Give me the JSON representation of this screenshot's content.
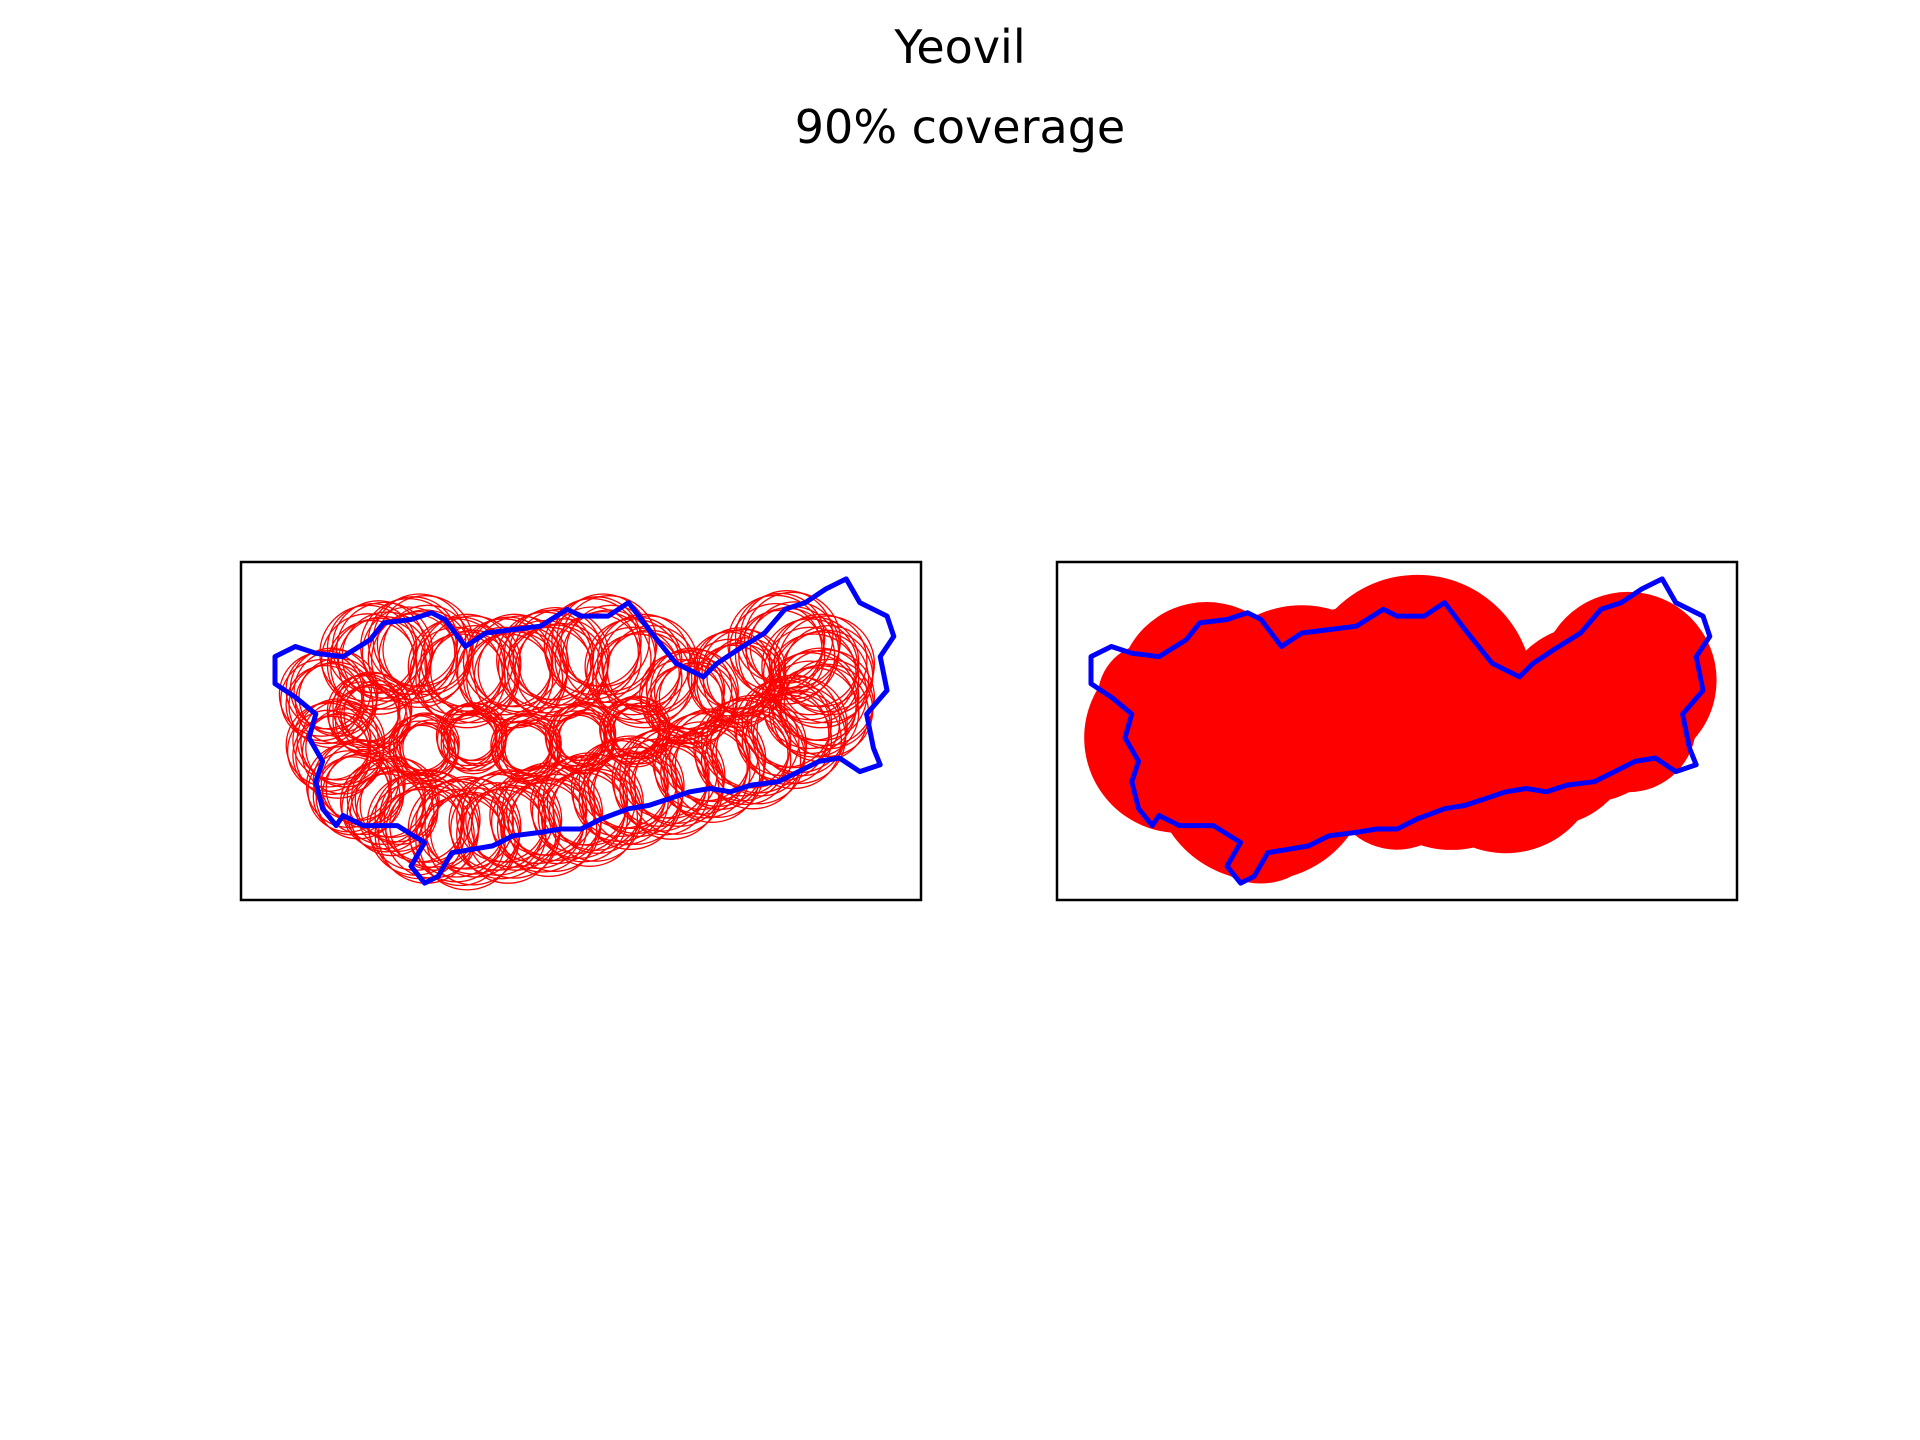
{
  "title": "Yeovil",
  "subtitle": "90% coverage",
  "colors": {
    "boundary": "#0000ff",
    "coverage": "#ff0000",
    "frame": "#000000",
    "background": "#ffffff"
  },
  "chart_data": [
    {
      "type": "map",
      "style": "circle-outlines",
      "axes_ticks": false,
      "x_range": [
        0,
        1
      ],
      "y_range": [
        0,
        1
      ],
      "boundary": [
        [
          0.05,
          0.72
        ],
        [
          0.08,
          0.75
        ],
        [
          0.11,
          0.73
        ],
        [
          0.15,
          0.72
        ],
        [
          0.19,
          0.77
        ],
        [
          0.21,
          0.82
        ],
        [
          0.25,
          0.83
        ],
        [
          0.28,
          0.85
        ],
        [
          0.3,
          0.83
        ],
        [
          0.33,
          0.75
        ],
        [
          0.36,
          0.79
        ],
        [
          0.4,
          0.8
        ],
        [
          0.44,
          0.81
        ],
        [
          0.48,
          0.86
        ],
        [
          0.5,
          0.84
        ],
        [
          0.54,
          0.84
        ],
        [
          0.57,
          0.88
        ],
        [
          0.6,
          0.8
        ],
        [
          0.62,
          0.75
        ],
        [
          0.64,
          0.7
        ],
        [
          0.68,
          0.66
        ],
        [
          0.7,
          0.7
        ],
        [
          0.73,
          0.74
        ],
        [
          0.77,
          0.79
        ],
        [
          0.8,
          0.86
        ],
        [
          0.83,
          0.88
        ],
        [
          0.86,
          0.92
        ],
        [
          0.89,
          0.95
        ],
        [
          0.91,
          0.88
        ],
        [
          0.95,
          0.84
        ],
        [
          0.96,
          0.78
        ],
        [
          0.94,
          0.72
        ],
        [
          0.95,
          0.62
        ],
        [
          0.92,
          0.55
        ],
        [
          0.93,
          0.45
        ],
        [
          0.94,
          0.4
        ],
        [
          0.91,
          0.38
        ],
        [
          0.88,
          0.42
        ],
        [
          0.85,
          0.41
        ],
        [
          0.82,
          0.38
        ],
        [
          0.79,
          0.35
        ],
        [
          0.75,
          0.34
        ],
        [
          0.72,
          0.32
        ],
        [
          0.69,
          0.33
        ],
        [
          0.66,
          0.32
        ],
        [
          0.63,
          0.3
        ],
        [
          0.6,
          0.28
        ],
        [
          0.57,
          0.27
        ],
        [
          0.53,
          0.24
        ],
        [
          0.5,
          0.21
        ],
        [
          0.47,
          0.21
        ],
        [
          0.44,
          0.2
        ],
        [
          0.4,
          0.19
        ],
        [
          0.37,
          0.16
        ],
        [
          0.34,
          0.15
        ],
        [
          0.31,
          0.14
        ],
        [
          0.29,
          0.07
        ],
        [
          0.27,
          0.05
        ],
        [
          0.25,
          0.1
        ],
        [
          0.27,
          0.17
        ],
        [
          0.23,
          0.22
        ],
        [
          0.18,
          0.22
        ],
        [
          0.15,
          0.25
        ],
        [
          0.14,
          0.22
        ],
        [
          0.12,
          0.27
        ],
        [
          0.11,
          0.35
        ],
        [
          0.12,
          0.41
        ],
        [
          0.1,
          0.48
        ],
        [
          0.11,
          0.55
        ],
        [
          0.08,
          0.6
        ],
        [
          0.05,
          0.64
        ],
        [
          0.05,
          0.72
        ]
      ],
      "coverage_circles": [
        [
          0.13,
          0.6,
          0.07
        ],
        [
          0.14,
          0.45,
          0.07
        ],
        [
          0.17,
          0.33,
          0.07
        ],
        [
          0.22,
          0.28,
          0.07
        ],
        [
          0.27,
          0.22,
          0.08
        ],
        [
          0.33,
          0.2,
          0.08
        ],
        [
          0.39,
          0.22,
          0.08
        ],
        [
          0.45,
          0.24,
          0.08
        ],
        [
          0.51,
          0.27,
          0.08
        ],
        [
          0.57,
          0.32,
          0.08
        ],
        [
          0.63,
          0.35,
          0.08
        ],
        [
          0.69,
          0.4,
          0.08
        ],
        [
          0.75,
          0.44,
          0.08
        ],
        [
          0.81,
          0.5,
          0.08
        ],
        [
          0.85,
          0.58,
          0.08
        ],
        [
          0.85,
          0.68,
          0.08
        ],
        [
          0.8,
          0.75,
          0.08
        ],
        [
          0.73,
          0.66,
          0.07
        ],
        [
          0.66,
          0.6,
          0.07
        ],
        [
          0.59,
          0.68,
          0.08
        ],
        [
          0.53,
          0.74,
          0.08
        ],
        [
          0.46,
          0.7,
          0.08
        ],
        [
          0.4,
          0.68,
          0.08
        ],
        [
          0.33,
          0.68,
          0.08
        ],
        [
          0.26,
          0.74,
          0.08
        ],
        [
          0.2,
          0.72,
          0.08
        ],
        [
          0.19,
          0.55,
          0.06
        ],
        [
          0.27,
          0.45,
          0.05
        ],
        [
          0.34,
          0.48,
          0.05
        ],
        [
          0.42,
          0.45,
          0.05
        ],
        [
          0.5,
          0.48,
          0.05
        ],
        [
          0.58,
          0.5,
          0.05
        ]
      ]
    },
    {
      "type": "map",
      "style": "filled-circles",
      "axes_ticks": false,
      "x_range": [
        0,
        1
      ],
      "y_range": [
        0,
        1
      ],
      "boundary": [
        [
          0.05,
          0.72
        ],
        [
          0.08,
          0.75
        ],
        [
          0.11,
          0.73
        ],
        [
          0.15,
          0.72
        ],
        [
          0.19,
          0.77
        ],
        [
          0.21,
          0.82
        ],
        [
          0.25,
          0.83
        ],
        [
          0.28,
          0.85
        ],
        [
          0.3,
          0.83
        ],
        [
          0.33,
          0.75
        ],
        [
          0.36,
          0.79
        ],
        [
          0.4,
          0.8
        ],
        [
          0.44,
          0.81
        ],
        [
          0.48,
          0.86
        ],
        [
          0.5,
          0.84
        ],
        [
          0.54,
          0.84
        ],
        [
          0.57,
          0.88
        ],
        [
          0.6,
          0.8
        ],
        [
          0.62,
          0.75
        ],
        [
          0.64,
          0.7
        ],
        [
          0.68,
          0.66
        ],
        [
          0.7,
          0.7
        ],
        [
          0.73,
          0.74
        ],
        [
          0.77,
          0.79
        ],
        [
          0.8,
          0.86
        ],
        [
          0.83,
          0.88
        ],
        [
          0.86,
          0.92
        ],
        [
          0.89,
          0.95
        ],
        [
          0.91,
          0.88
        ],
        [
          0.95,
          0.84
        ],
        [
          0.96,
          0.78
        ],
        [
          0.94,
          0.72
        ],
        [
          0.95,
          0.62
        ],
        [
          0.92,
          0.55
        ],
        [
          0.93,
          0.45
        ],
        [
          0.94,
          0.4
        ],
        [
          0.91,
          0.38
        ],
        [
          0.88,
          0.42
        ],
        [
          0.85,
          0.41
        ],
        [
          0.82,
          0.38
        ],
        [
          0.79,
          0.35
        ],
        [
          0.75,
          0.34
        ],
        [
          0.72,
          0.32
        ],
        [
          0.69,
          0.33
        ],
        [
          0.66,
          0.32
        ],
        [
          0.63,
          0.3
        ],
        [
          0.6,
          0.28
        ],
        [
          0.57,
          0.27
        ],
        [
          0.53,
          0.24
        ],
        [
          0.5,
          0.21
        ],
        [
          0.47,
          0.21
        ],
        [
          0.44,
          0.2
        ],
        [
          0.4,
          0.19
        ],
        [
          0.37,
          0.16
        ],
        [
          0.34,
          0.15
        ],
        [
          0.31,
          0.14
        ],
        [
          0.29,
          0.07
        ],
        [
          0.27,
          0.05
        ],
        [
          0.25,
          0.1
        ],
        [
          0.27,
          0.17
        ],
        [
          0.23,
          0.22
        ],
        [
          0.18,
          0.22
        ],
        [
          0.15,
          0.25
        ],
        [
          0.14,
          0.22
        ],
        [
          0.12,
          0.27
        ],
        [
          0.11,
          0.35
        ],
        [
          0.12,
          0.41
        ],
        [
          0.1,
          0.48
        ],
        [
          0.11,
          0.55
        ],
        [
          0.08,
          0.6
        ],
        [
          0.05,
          0.64
        ],
        [
          0.05,
          0.72
        ]
      ],
      "coverage_circles": [
        [
          0.18,
          0.48,
          0.14
        ],
        [
          0.22,
          0.62,
          0.13
        ],
        [
          0.3,
          0.38,
          0.16
        ],
        [
          0.36,
          0.55,
          0.16
        ],
        [
          0.45,
          0.55,
          0.16
        ],
        [
          0.53,
          0.62,
          0.17
        ],
        [
          0.58,
          0.45,
          0.15
        ],
        [
          0.66,
          0.42,
          0.14
        ],
        [
          0.72,
          0.48,
          0.13
        ],
        [
          0.78,
          0.55,
          0.13
        ],
        [
          0.84,
          0.65,
          0.13
        ],
        [
          0.84,
          0.52,
          0.1
        ],
        [
          0.3,
          0.25,
          0.1
        ],
        [
          0.42,
          0.4,
          0.1
        ],
        [
          0.5,
          0.35,
          0.1
        ],
        [
          0.14,
          0.6,
          0.08
        ]
      ]
    }
  ]
}
